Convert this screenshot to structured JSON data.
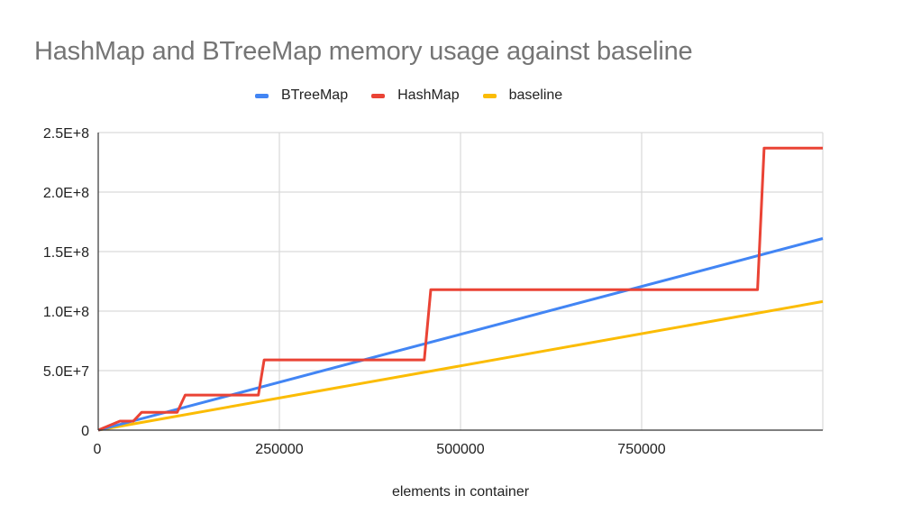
{
  "title": "HashMap and BTreeMap memory usage against baseline",
  "legend": [
    {
      "label": "BTreeMap",
      "color": "#4285F4"
    },
    {
      "label": "HashMap",
      "color": "#EA4335"
    },
    {
      "label": "baseline",
      "color": "#FBBC04"
    }
  ],
  "x_axis_title": "elements in container",
  "x_ticks": [
    "0",
    "250000",
    "500000",
    "750000"
  ],
  "y_ticks": [
    "0",
    "5.0E+7",
    "1.0E+8",
    "1.5E+8",
    "2.0E+8",
    "2.5E+8"
  ],
  "chart_data": {
    "type": "line",
    "title": "HashMap and BTreeMap memory usage against baseline",
    "xlabel": "elements in container",
    "ylabel": "",
    "xlim": [
      0,
      1000000
    ],
    "ylim": [
      0,
      250000000
    ],
    "x_tick_labels": [
      "0",
      "250000",
      "500000",
      "750000"
    ],
    "y_tick_labels": [
      "0",
      "5.0E+7",
      "1.0E+8",
      "1.5E+8",
      "2.0E+8",
      "2.5E+8"
    ],
    "grid": true,
    "legend_position": "top",
    "series": [
      {
        "name": "BTreeMap",
        "color": "#4285F4",
        "points": [
          [
            0,
            0
          ],
          [
            1000000,
            161000000
          ]
        ]
      },
      {
        "name": "HashMap",
        "color": "#EA4335",
        "points": [
          [
            0,
            0
          ],
          [
            30000,
            7600000
          ],
          [
            48500,
            7600000
          ],
          [
            60000,
            15000000
          ],
          [
            109000,
            15000000
          ],
          [
            120000,
            29500000
          ],
          [
            221000,
            29500000
          ],
          [
            229000,
            59000000
          ],
          [
            450000,
            59000000
          ],
          [
            459000,
            118000000
          ],
          [
            910000,
            118000000
          ],
          [
            919000,
            237000000
          ],
          [
            1000000,
            237000000
          ]
        ]
      },
      {
        "name": "baseline",
        "color": "#FBBC04",
        "points": [
          [
            0,
            0
          ],
          [
            1000000,
            108000000
          ]
        ]
      }
    ]
  }
}
